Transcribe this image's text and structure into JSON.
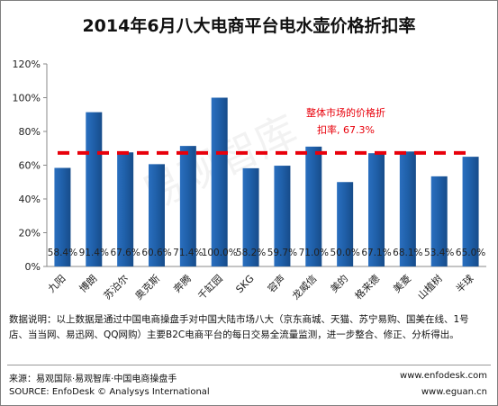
{
  "title": "2014年6月八大电商平台电水壶价格折扣率",
  "chart_data": {
    "type": "bar",
    "categories": [
      "九阳",
      "博朗",
      "苏泊尔",
      "奥克斯",
      "奔腾",
      "千缸园",
      "SKG",
      "容声",
      "龙威信",
      "美的",
      "格来德",
      "美菱",
      "山植树",
      "半球"
    ],
    "values": [
      58.4,
      91.4,
      67.6,
      60.6,
      71.4,
      100.0,
      58.2,
      59.7,
      71.0,
      50.0,
      67.1,
      68.1,
      53.4,
      65.0
    ],
    "value_labels": [
      "58.4%",
      "91.4%",
      "67.6%",
      "60.6%",
      "71.4%",
      "100.0%",
      "58.2%",
      "59.7%",
      "71.0%",
      "50.0%",
      "67.1%",
      "68.1%",
      "53.4%",
      "65.0%"
    ],
    "ylim": [
      0,
      120
    ],
    "yticks": [
      0,
      20,
      40,
      60,
      80,
      100,
      120
    ],
    "ytick_labels": [
      "0%",
      "20%",
      "40%",
      "60%",
      "80%",
      "100%",
      "120%"
    ],
    "reference_line": {
      "value": 67.3,
      "label_line1": "整体市场的价格折",
      "label_line2": "扣率, 67.3%"
    },
    "bar_color": "#1f5fa8",
    "line_color": "#e8000b"
  },
  "note": "数据说明：以上数据是通过中国电商操盘手对中国大陆市场八大（京东商城、天猫、苏宁易购、国美在线、1号店、当当网、易迅网、QQ网购）主要B2C电商平台的每日交易全流量监测，进一步整合、修正、分析得出。",
  "footer": {
    "source_cn": "来源：易观国际·易观智库·中国电商操盘手",
    "source_en": "SOURCE: EnfoDesk © Analysys International",
    "site1": "www.enfodesk.com",
    "site2": "www.eguan.cn"
  },
  "watermark": "易观智库"
}
